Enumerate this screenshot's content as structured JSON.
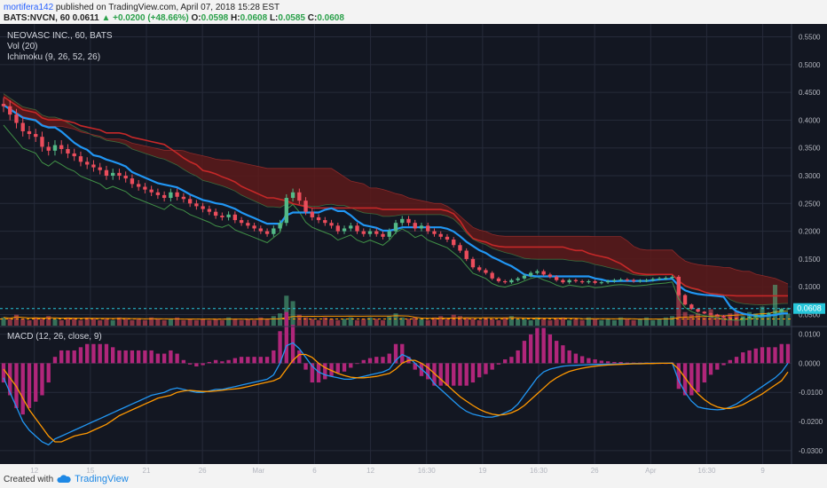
{
  "header": {
    "author": "mortifera142",
    "published": "published on TradingView.com, April 07, 2018 15:28 EST",
    "symbol": "BATS:NVCN, 60",
    "last": "0.0611",
    "change": "▲ +0.0200 (+48.66%)",
    "open_label": "O:",
    "open": "0.0598",
    "high_label": "H:",
    "high": "0.0608",
    "low_label": "L:",
    "low": "0.0585",
    "close_label": "C:",
    "close": "0.0608"
  },
  "legend": {
    "title": "NEOVASC INC., 60, BATS",
    "volume": "Vol (20)",
    "ichimoku": "Ichimoku (9, 26, 52, 26)",
    "macd": "MACD (12, 26, close, 9)"
  },
  "footer": {
    "created_with": "Created with",
    "brand": "TradingView"
  },
  "colors": {
    "background": "#131722",
    "grid": "#262b3a",
    "candle_up": "#53b987",
    "candle_down": "#eb4d5c",
    "conversion": "#2196f3",
    "base": "#c62828",
    "lagging": "#4caf50",
    "cloud": "#5d1a1a",
    "macd": "#2196f3",
    "signal": "#ff9800",
    "hist": "#b0267a",
    "price_line": "#26c6da",
    "support_line": "#ff9800"
  },
  "chart_data": [
    {
      "type": "candlestick",
      "title": "NEOVASC INC., 60, BATS",
      "x_ticks": [
        "12",
        "15",
        "21",
        "26",
        "Mar",
        "6",
        "12",
        "16:30",
        "19",
        "16:30",
        "26",
        "Apr",
        "16:30",
        "9"
      ],
      "y_ticks": [
        "0.0500",
        "0.1000",
        "0.1500",
        "0.2000",
        "0.2500",
        "0.3000",
        "0.3500",
        "0.4000",
        "0.4500",
        "0.5000",
        "0.5500"
      ],
      "ylim": [
        0.03,
        0.57
      ],
      "current_price": "0.0608",
      "current_price_value": 0.0608,
      "support_value": 0.042,
      "close_series": [
        0.425,
        0.41,
        0.395,
        0.38,
        0.375,
        0.37,
        0.352,
        0.345,
        0.355,
        0.348,
        0.34,
        0.335,
        0.325,
        0.32,
        0.315,
        0.31,
        0.3,
        0.305,
        0.3,
        0.295,
        0.285,
        0.28,
        0.275,
        0.27,
        0.265,
        0.26,
        0.27,
        0.262,
        0.258,
        0.25,
        0.245,
        0.24,
        0.235,
        0.228,
        0.225,
        0.23,
        0.22,
        0.215,
        0.21,
        0.205,
        0.2,
        0.195,
        0.205,
        0.215,
        0.26,
        0.27,
        0.255,
        0.235,
        0.225,
        0.22,
        0.215,
        0.21,
        0.2,
        0.205,
        0.21,
        0.2,
        0.195,
        0.2,
        0.195,
        0.19,
        0.2,
        0.215,
        0.222,
        0.215,
        0.205,
        0.21,
        0.2,
        0.195,
        0.19,
        0.185,
        0.175,
        0.165,
        0.15,
        0.135,
        0.13,
        0.125,
        0.115,
        0.11,
        0.108,
        0.112,
        0.115,
        0.12,
        0.125,
        0.128,
        0.122,
        0.118,
        0.112,
        0.108,
        0.112,
        0.11,
        0.108,
        0.11,
        0.107,
        0.108,
        0.11,
        0.112,
        0.113,
        0.112,
        0.11,
        0.111,
        0.112,
        0.114,
        0.115,
        0.116,
        0.118,
        0.085,
        0.068,
        0.06,
        0.055,
        0.052,
        0.05,
        0.048,
        0.045,
        0.044,
        0.043,
        0.044,
        0.046,
        0.048,
        0.05,
        0.053,
        0.055,
        0.06,
        0.0608
      ],
      "volume_series": [
        6,
        5,
        8,
        5,
        4,
        6,
        5,
        7,
        5,
        4,
        6,
        5,
        4,
        6,
        5,
        4,
        5,
        4,
        6,
        5,
        4,
        5,
        4,
        6,
        5,
        4,
        5,
        6,
        4,
        5,
        4,
        5,
        4,
        5,
        4,
        6,
        5,
        4,
        5,
        4,
        6,
        5,
        7,
        9,
        22,
        18,
        8,
        6,
        5,
        4,
        6,
        5,
        4,
        5,
        6,
        4,
        5,
        6,
        5,
        4,
        7,
        9,
        6,
        5,
        6,
        5,
        4,
        6,
        7,
        5,
        8,
        7,
        6,
        5,
        4,
        6,
        5,
        4,
        6,
        7,
        5,
        5,
        4,
        6,
        5,
        4,
        5,
        6,
        4,
        5,
        4,
        6,
        5,
        4,
        5,
        4,
        6,
        5,
        4,
        5,
        6,
        4,
        5,
        6,
        7,
        24,
        10,
        8,
        9,
        6,
        12,
        8,
        6,
        9,
        11,
        7,
        10,
        9,
        14,
        8,
        30,
        12,
        9
      ]
    },
    {
      "type": "line",
      "title": "MACD (12, 26, close, 9)",
      "y_ticks": [
        "-0.0300",
        "-0.0200",
        "-0.0100",
        "0.0000",
        "0.0100"
      ],
      "ylim": [
        -0.034,
        0.012
      ],
      "series": [
        {
          "values": [
            -0.005,
            -0.01,
            -0.015,
            -0.02,
            -0.023,
            -0.025,
            -0.027,
            -0.028,
            -0.026,
            -0.025,
            -0.024,
            -0.023,
            -0.022,
            -0.021,
            -0.02,
            -0.019,
            -0.018,
            -0.017,
            -0.016,
            -0.015,
            -0.014,
            -0.013,
            -0.012,
            -0.011,
            -0.0105,
            -0.01,
            -0.009,
            -0.0085,
            -0.009,
            -0.0095,
            -0.01,
            -0.01,
            -0.0095,
            -0.009,
            -0.009,
            -0.0085,
            -0.008,
            -0.0075,
            -0.007,
            -0.0065,
            -0.006,
            -0.0055,
            -0.004,
            0.0,
            0.006,
            0.007,
            0.005,
            0.002,
            -0.001,
            -0.003,
            -0.004,
            -0.0045,
            -0.005,
            -0.0055,
            -0.0055,
            -0.005,
            -0.0045,
            -0.004,
            -0.0035,
            -0.003,
            -0.002,
            0.001,
            0.003,
            0.002,
            0.0,
            -0.002,
            -0.004,
            -0.007,
            -0.009,
            -0.011,
            -0.013,
            -0.015,
            -0.0165,
            -0.0175,
            -0.018,
            -0.0185,
            -0.0185,
            -0.018,
            -0.017,
            -0.016,
            -0.014,
            -0.011,
            -0.008,
            -0.005,
            -0.003,
            -0.002,
            -0.0015,
            -0.001,
            -0.0008,
            -0.0007,
            -0.0006,
            -0.0005,
            -0.0004,
            -0.0004,
            -0.0003,
            -0.0003,
            -0.0002,
            -0.0002,
            -0.0001,
            -0.0001,
            0.0,
            0.0,
            0.0,
            0.0,
            0.0001,
            -0.006,
            -0.01,
            -0.013,
            -0.015,
            -0.0155,
            -0.0158,
            -0.016,
            -0.0158,
            -0.015,
            -0.014,
            -0.0125,
            -0.011,
            -0.0095,
            -0.008,
            -0.0065,
            -0.005,
            -0.003,
            0.0
          ]
        },
        {
          "values": [
            -0.002,
            -0.005,
            -0.008,
            -0.012,
            -0.016,
            -0.019,
            -0.022,
            -0.025,
            -0.027,
            -0.027,
            -0.026,
            -0.025,
            -0.0245,
            -0.024,
            -0.023,
            -0.022,
            -0.021,
            -0.0195,
            -0.018,
            -0.017,
            -0.016,
            -0.015,
            -0.014,
            -0.013,
            -0.012,
            -0.0115,
            -0.011,
            -0.01,
            -0.0095,
            -0.0093,
            -0.0095,
            -0.0097,
            -0.0097,
            -0.0095,
            -0.0093,
            -0.009,
            -0.0088,
            -0.0085,
            -0.008,
            -0.0075,
            -0.007,
            -0.0065,
            -0.006,
            -0.005,
            -0.002,
            0.001,
            0.003,
            0.003,
            0.002,
            0.0,
            -0.0015,
            -0.0025,
            -0.0035,
            -0.0042,
            -0.0048,
            -0.005,
            -0.005,
            -0.0048,
            -0.0045,
            -0.004,
            -0.0035,
            -0.002,
            0.0,
            0.001,
            0.001,
            0.0,
            -0.0015,
            -0.0035,
            -0.0055,
            -0.0075,
            -0.0095,
            -0.0115,
            -0.013,
            -0.0145,
            -0.0158,
            -0.0168,
            -0.0175,
            -0.0178,
            -0.0176,
            -0.017,
            -0.016,
            -0.0145,
            -0.0125,
            -0.0105,
            -0.0085,
            -0.0065,
            -0.005,
            -0.0038,
            -0.0028,
            -0.0022,
            -0.0017,
            -0.0013,
            -0.001,
            -0.0008,
            -0.0006,
            -0.0005,
            -0.0004,
            -0.0003,
            -0.0002,
            -0.0002,
            -0.0001,
            -0.0001,
            0.0,
            0.0,
            0.0,
            -0.002,
            -0.005,
            -0.008,
            -0.0105,
            -0.0125,
            -0.014,
            -0.015,
            -0.0155,
            -0.0155,
            -0.015,
            -0.0142,
            -0.013,
            -0.0118,
            -0.0105,
            -0.009,
            -0.0075,
            -0.006,
            -0.003
          ]
        }
      ]
    }
  ]
}
